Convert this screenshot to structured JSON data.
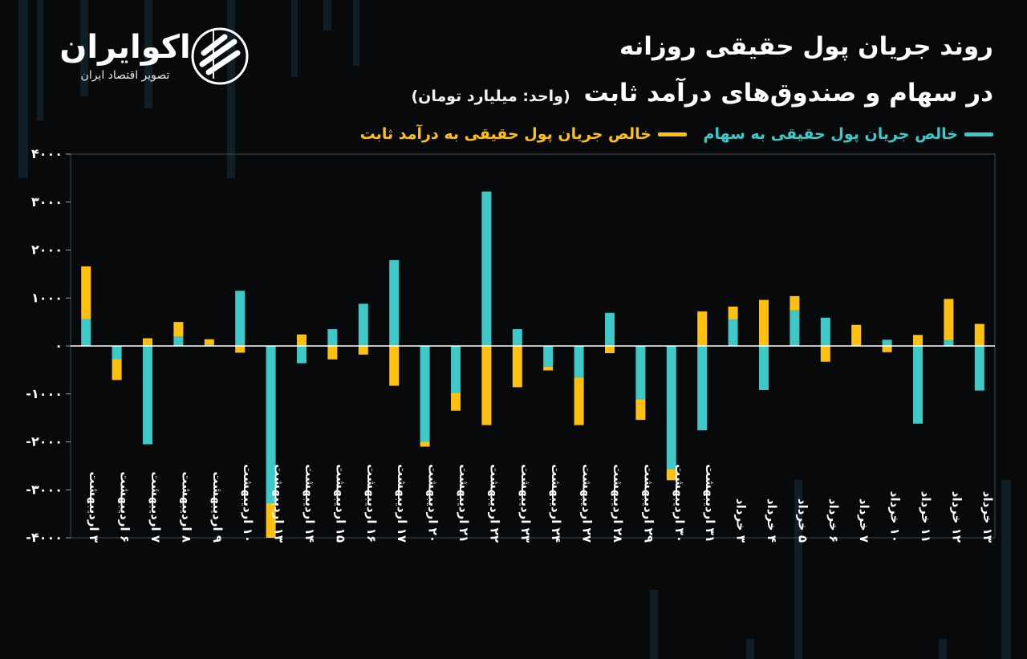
{
  "brand": {
    "name": "اکوایران",
    "tagline": "تصویر اقتصاد ایران"
  },
  "header": {
    "title_line1": "روند جریان پول حقیقی روزانه",
    "title_line2": "در سهام و صندوق‌های درآمد ثابت",
    "unit": "(واحد: میلیارد تومان)"
  },
  "colors": {
    "stocks": "#3ec9c9",
    "fixed_income": "#ffc10e",
    "background": "#07090b"
  },
  "chart_data": {
    "type": "bar",
    "stacked": true,
    "title": "روند جریان پول حقیقی روزانه در سهام و صندوق‌های درآمد ثابت",
    "ylabel": "میلیارد تومان",
    "ylim": [
      -4000,
      4000
    ],
    "yticks": [
      "۴۰۰۰",
      "۳۰۰۰",
      "۲۰۰۰",
      "۱۰۰۰",
      "۰",
      "-۱۰۰۰",
      "-۲۰۰۰",
      "-۳۰۰۰",
      "-۴۰۰۰"
    ],
    "ytick_values": [
      4000,
      3000,
      2000,
      1000,
      0,
      -1000,
      -2000,
      -3000,
      -4000
    ],
    "categories": [
      "۳ اردیبهشت",
      "۶ اردیبهشت",
      "۷ اردیبهشت",
      "۸ اردیبهشت",
      "۹ اردیبهشت",
      "۱۰ اردیبهشت",
      "۱۳ اردیبهشت",
      "۱۴ اردیبهشت",
      "۱۵ اردیبهشت",
      "۱۶ اردیبهشت",
      "۱۷ اردیبهشت",
      "۲۰ اردیبهشت",
      "۲۱ اردیبهشت",
      "۲۲ اردیبهشت",
      "۲۳ اردیبهشت",
      "۲۴ اردیبهشت",
      "۲۷ اردیبهشت",
      "۲۸ اردیبهشت",
      "۲۹ اردیبهشت",
      "۳۰ اردیبهشت",
      "۳۱ اردیبهشت",
      "۳ خرداد",
      "۴ خرداد",
      "۵ خرداد",
      "۶ خرداد",
      "۷ خرداد",
      "۱۰ خرداد",
      "۱۱ خرداد",
      "۱۲ خرداد",
      "۱۳ خرداد"
    ],
    "series": [
      {
        "name": "خالص جریان پول حقیقی به سهام",
        "color": "#3ec9c9",
        "values": [
          560,
          -270,
          -2050,
          200,
          20,
          1150,
          -3280,
          -360,
          350,
          880,
          1790,
          -2000,
          -980,
          3220,
          350,
          -430,
          -660,
          690,
          -1110,
          -2570,
          -1760,
          550,
          -920,
          740,
          590,
          0,
          130,
          -1620,
          120,
          -930
        ]
      },
      {
        "name": "خالص جریان پول حقیقی به درآمد ثابت",
        "color": "#ffc10e",
        "values": [
          1100,
          -440,
          160,
          300,
          120,
          -140,
          -720,
          240,
          -280,
          -180,
          -830,
          -100,
          -370,
          -1650,
          -860,
          -80,
          -990,
          -150,
          -430,
          -230,
          720,
          270,
          960,
          300,
          -330,
          440,
          -130,
          230,
          860,
          460
        ]
      }
    ]
  }
}
